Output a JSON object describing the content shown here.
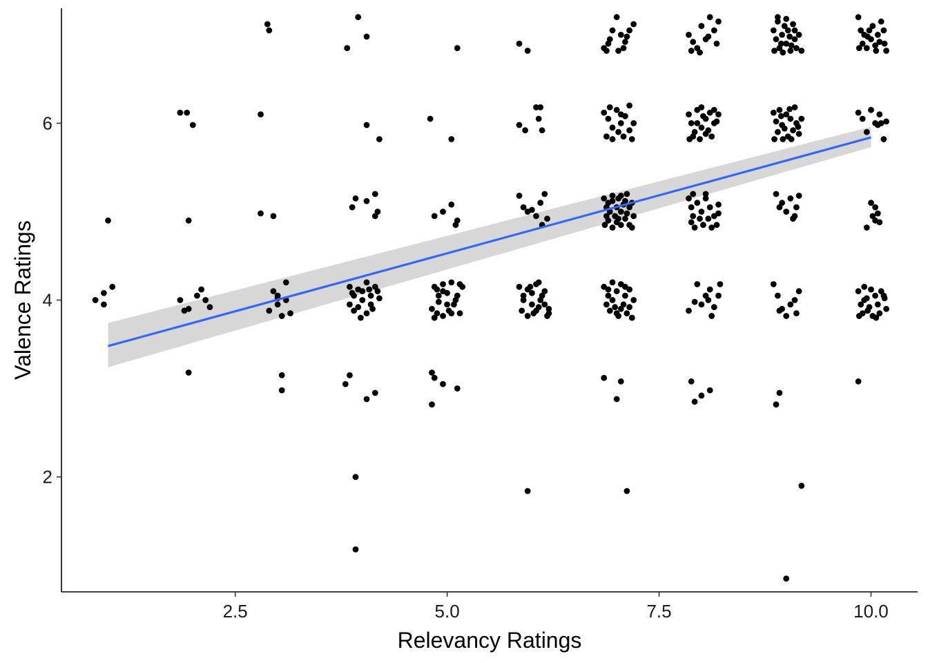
{
  "chart_data": {
    "type": "scatter",
    "title": "",
    "xlabel": "Relevancy Ratings",
    "ylabel": "Valence Ratings",
    "xlim": [
      0.45,
      10.55
    ],
    "ylim": [
      0.7,
      7.3
    ],
    "x_ticks": [
      2.5,
      5.0,
      7.5,
      10.0
    ],
    "x_tick_labels": [
      "2.5",
      "5.0",
      "7.5",
      "10.0"
    ],
    "y_ticks": [
      2,
      4,
      6
    ],
    "y_tick_labels": [
      "2",
      "4",
      "6"
    ],
    "grid": false,
    "legend": "none",
    "point_color": "#000000",
    "note": "Jittered points",
    "points": [
      [
        1.0,
        4.9
      ],
      [
        0.85,
        4.0
      ],
      [
        0.95,
        3.95
      ],
      [
        1.05,
        4.15
      ],
      [
        0.95,
        4.08
      ],
      [
        1.95,
        4.9
      ],
      [
        1.85,
        6.12
      ],
      [
        1.93,
        6.12
      ],
      [
        2.0,
        5.98
      ],
      [
        1.85,
        4.0
      ],
      [
        1.95,
        3.9
      ],
      [
        2.05,
        4.05
      ],
      [
        2.1,
        4.12
      ],
      [
        2.15,
        4.0
      ],
      [
        2.2,
        3.92
      ],
      [
        1.9,
        3.88
      ],
      [
        1.95,
        3.18
      ],
      [
        2.88,
        7.12
      ],
      [
        2.9,
        7.05
      ],
      [
        2.8,
        6.1
      ],
      [
        2.8,
        4.98
      ],
      [
        2.95,
        4.95
      ],
      [
        2.95,
        4.1
      ],
      [
        3.0,
        4.02
      ],
      [
        3.1,
        4.2
      ],
      [
        2.9,
        3.88
      ],
      [
        3.0,
        3.95
      ],
      [
        3.05,
        3.82
      ],
      [
        3.1,
        4.0
      ],
      [
        3.15,
        3.85
      ],
      [
        3.0,
        4.05
      ],
      [
        3.05,
        3.15
      ],
      [
        3.05,
        2.98
      ],
      [
        3.95,
        7.2
      ],
      [
        4.05,
        6.98
      ],
      [
        3.82,
        6.85
      ],
      [
        4.05,
        5.98
      ],
      [
        4.2,
        5.82
      ],
      [
        3.92,
        5.15
      ],
      [
        3.88,
        5.05
      ],
      [
        4.05,
        5.12
      ],
      [
        4.15,
        5.2
      ],
      [
        4.15,
        4.95
      ],
      [
        4.18,
        5.0
      ],
      [
        3.85,
        4.15
      ],
      [
        3.9,
        4.05
      ],
      [
        3.95,
        4.12
      ],
      [
        4.0,
        4.0
      ],
      [
        4.05,
        4.2
      ],
      [
        4.1,
        4.05
      ],
      [
        4.15,
        4.15
      ],
      [
        3.85,
        3.95
      ],
      [
        3.9,
        3.88
      ],
      [
        3.95,
        3.92
      ],
      [
        4.0,
        4.1
      ],
      [
        4.05,
        3.85
      ],
      [
        4.12,
        3.9
      ],
      [
        4.18,
        4.1
      ],
      [
        3.88,
        4.08
      ],
      [
        3.98,
        3.8
      ],
      [
        4.08,
        4.12
      ],
      [
        4.2,
        4.02
      ],
      [
        4.1,
        3.95
      ],
      [
        3.85,
        3.15
      ],
      [
        3.8,
        3.05
      ],
      [
        4.05,
        2.88
      ],
      [
        4.15,
        2.95
      ],
      [
        3.92,
        2.0
      ],
      [
        3.92,
        1.18
      ],
      [
        5.12,
        6.85
      ],
      [
        4.8,
        6.05
      ],
      [
        5.05,
        5.82
      ],
      [
        4.85,
        4.95
      ],
      [
        4.95,
        5.0
      ],
      [
        5.05,
        5.08
      ],
      [
        5.12,
        4.9
      ],
      [
        5.1,
        4.85
      ],
      [
        4.85,
        4.15
      ],
      [
        4.9,
        4.05
      ],
      [
        4.95,
        4.1
      ],
      [
        5.0,
        3.95
      ],
      [
        5.05,
        4.2
      ],
      [
        5.1,
        4.0
      ],
      [
        5.15,
        4.18
      ],
      [
        4.82,
        3.9
      ],
      [
        4.88,
        3.85
      ],
      [
        4.95,
        3.82
      ],
      [
        5.02,
        3.88
      ],
      [
        5.08,
        3.95
      ],
      [
        5.15,
        3.85
      ],
      [
        4.9,
        3.98
      ],
      [
        5.0,
        4.08
      ],
      [
        4.85,
        3.8
      ],
      [
        4.95,
        4.18
      ],
      [
        5.05,
        3.85
      ],
      [
        5.12,
        4.05
      ],
      [
        5.18,
        4.15
      ],
      [
        4.88,
        4.12
      ],
      [
        4.82,
        3.18
      ],
      [
        4.85,
        3.12
      ],
      [
        4.95,
        3.05
      ],
      [
        5.12,
        3.0
      ],
      [
        4.82,
        2.82
      ],
      [
        5.85,
        6.9
      ],
      [
        5.95,
        6.82
      ],
      [
        5.85,
        5.98
      ],
      [
        5.92,
        5.92
      ],
      [
        6.05,
        6.18
      ],
      [
        6.1,
        6.18
      ],
      [
        6.08,
        6.05
      ],
      [
        6.12,
        5.92
      ],
      [
        5.85,
        5.18
      ],
      [
        5.9,
        5.05
      ],
      [
        5.95,
        5.0
      ],
      [
        6.05,
        4.95
      ],
      [
        6.1,
        5.1
      ],
      [
        6.15,
        5.2
      ],
      [
        6.12,
        4.85
      ],
      [
        6.18,
        4.92
      ],
      [
        6.0,
        5.02
      ],
      [
        5.85,
        4.15
      ],
      [
        5.9,
        4.05
      ],
      [
        5.95,
        4.12
      ],
      [
        6.0,
        3.95
      ],
      [
        6.05,
        4.18
      ],
      [
        6.1,
        4.0
      ],
      [
        6.15,
        4.1
      ],
      [
        6.2,
        3.9
      ],
      [
        5.88,
        3.88
      ],
      [
        5.95,
        3.82
      ],
      [
        6.02,
        3.85
      ],
      [
        6.08,
        3.92
      ],
      [
        6.12,
        4.05
      ],
      [
        6.18,
        3.82
      ],
      [
        5.9,
        4.0
      ],
      [
        6.0,
        4.08
      ],
      [
        6.05,
        3.88
      ],
      [
        6.15,
        3.95
      ],
      [
        5.98,
        4.15
      ],
      [
        6.08,
        4.2
      ],
      [
        6.2,
        3.85
      ],
      [
        5.95,
        1.84
      ],
      [
        6.85,
        6.85
      ],
      [
        6.9,
        6.9
      ],
      [
        6.95,
        7.05
      ],
      [
        7.0,
        7.2
      ],
      [
        7.05,
        7.0
      ],
      [
        7.1,
        6.92
      ],
      [
        7.15,
        7.05
      ],
      [
        7.2,
        7.12
      ],
      [
        6.88,
        6.82
      ],
      [
        7.02,
        6.82
      ],
      [
        7.08,
        6.85
      ],
      [
        6.92,
        6.95
      ],
      [
        7.12,
        6.98
      ],
      [
        6.85,
        6.12
      ],
      [
        6.9,
        6.05
      ],
      [
        6.95,
        5.95
      ],
      [
        7.0,
        6.15
      ],
      [
        7.05,
        6.0
      ],
      [
        7.1,
        6.08
      ],
      [
        7.15,
        6.2
      ],
      [
        7.2,
        6.0
      ],
      [
        6.88,
        5.85
      ],
      [
        6.95,
        5.82
      ],
      [
        7.02,
        5.9
      ],
      [
        7.08,
        5.85
      ],
      [
        7.15,
        5.92
      ],
      [
        7.18,
        5.82
      ],
      [
        6.92,
        6.18
      ],
      [
        7.05,
        6.1
      ],
      [
        6.85,
        5.15
      ],
      [
        6.88,
        5.05
      ],
      [
        6.9,
        5.1
      ],
      [
        6.92,
        5.0
      ],
      [
        6.95,
        5.12
      ],
      [
        6.98,
        4.95
      ],
      [
        7.0,
        5.05
      ],
      [
        7.02,
        5.15
      ],
      [
        7.05,
        5.0
      ],
      [
        7.08,
        5.08
      ],
      [
        7.1,
        5.12
      ],
      [
        7.12,
        4.98
      ],
      [
        7.15,
        5.05
      ],
      [
        7.18,
        5.1
      ],
      [
        6.86,
        4.85
      ],
      [
        6.9,
        4.9
      ],
      [
        6.95,
        4.82
      ],
      [
        7.0,
        4.88
      ],
      [
        7.05,
        4.85
      ],
      [
        7.1,
        4.92
      ],
      [
        7.15,
        4.85
      ],
      [
        7.2,
        4.95
      ],
      [
        6.95,
        5.18
      ],
      [
        7.05,
        5.18
      ],
      [
        7.12,
        5.2
      ],
      [
        6.88,
        4.95
      ],
      [
        7.02,
        4.92
      ],
      [
        7.18,
        4.82
      ],
      [
        6.85,
        4.15
      ],
      [
        6.9,
        4.05
      ],
      [
        6.95,
        4.2
      ],
      [
        7.0,
        4.1
      ],
      [
        7.05,
        4.18
      ],
      [
        7.1,
        4.05
      ],
      [
        7.15,
        4.12
      ],
      [
        7.2,
        4.0
      ],
      [
        6.88,
        3.95
      ],
      [
        6.92,
        3.88
      ],
      [
        6.98,
        3.92
      ],
      [
        7.02,
        3.82
      ],
      [
        7.08,
        3.95
      ],
      [
        7.12,
        3.85
      ],
      [
        7.18,
        3.8
      ],
      [
        6.95,
        4.0
      ],
      [
        7.05,
        3.9
      ],
      [
        7.1,
        4.15
      ],
      [
        6.9,
        4.12
      ],
      [
        7.0,
        3.85
      ],
      [
        7.15,
        3.92
      ],
      [
        6.85,
        3.12
      ],
      [
        7.05,
        3.08
      ],
      [
        7.0,
        2.88
      ],
      [
        7.12,
        1.84
      ],
      [
        7.85,
        7.0
      ],
      [
        7.9,
        6.92
      ],
      [
        7.95,
        6.85
      ],
      [
        8.0,
        7.1
      ],
      [
        8.05,
        6.95
      ],
      [
        8.1,
        7.2
      ],
      [
        8.15,
        7.05
      ],
      [
        8.2,
        7.15
      ],
      [
        7.88,
        6.82
      ],
      [
        7.98,
        6.8
      ],
      [
        8.08,
        6.98
      ],
      [
        8.18,
        6.9
      ],
      [
        7.85,
        6.1
      ],
      [
        7.88,
        6.0
      ],
      [
        7.9,
        5.85
      ],
      [
        7.95,
        6.15
      ],
      [
        8.0,
        5.95
      ],
      [
        8.05,
        6.05
      ],
      [
        8.1,
        6.12
      ],
      [
        8.15,
        6.0
      ],
      [
        8.2,
        6.1
      ],
      [
        7.92,
        5.9
      ],
      [
        7.98,
        5.82
      ],
      [
        8.02,
        6.08
      ],
      [
        8.08,
        5.92
      ],
      [
        8.12,
        5.85
      ],
      [
        8.18,
        6.02
      ],
      [
        7.86,
        5.82
      ],
      [
        8.0,
        6.18
      ],
      [
        8.15,
        6.15
      ],
      [
        7.95,
        6.0
      ],
      [
        8.05,
        5.88
      ],
      [
        7.85,
        5.15
      ],
      [
        7.88,
        5.05
      ],
      [
        7.9,
        4.95
      ],
      [
        7.95,
        5.1
      ],
      [
        8.0,
        5.0
      ],
      [
        8.05,
        5.15
      ],
      [
        8.1,
        5.05
      ],
      [
        8.15,
        4.95
      ],
      [
        8.2,
        5.08
      ],
      [
        7.88,
        4.88
      ],
      [
        7.92,
        4.82
      ],
      [
        7.98,
        4.92
      ],
      [
        8.02,
        4.85
      ],
      [
        8.08,
        4.92
      ],
      [
        8.12,
        4.82
      ],
      [
        8.18,
        4.85
      ],
      [
        7.9,
        5.2
      ],
      [
        8.05,
        5.2
      ],
      [
        8.2,
        4.98
      ],
      [
        7.85,
        3.88
      ],
      [
        7.95,
        4.18
      ],
      [
        8.0,
        3.95
      ],
      [
        8.05,
        4.05
      ],
      [
        8.1,
        4.12
      ],
      [
        8.15,
        3.92
      ],
      [
        8.2,
        4.05
      ],
      [
        8.12,
        3.82
      ],
      [
        8.22,
        4.18
      ],
      [
        7.92,
        3.98
      ],
      [
        8.08,
        4.0
      ],
      [
        7.88,
        3.08
      ],
      [
        7.92,
        2.85
      ],
      [
        8.0,
        2.92
      ],
      [
        8.1,
        2.98
      ],
      [
        8.85,
        7.05
      ],
      [
        8.88,
        6.95
      ],
      [
        8.9,
        7.15
      ],
      [
        8.92,
        6.85
      ],
      [
        8.95,
        7.0
      ],
      [
        8.98,
        7.1
      ],
      [
        9.0,
        6.9
      ],
      [
        9.02,
        7.05
      ],
      [
        9.05,
        6.82
      ],
      [
        9.08,
        7.12
      ],
      [
        9.1,
        6.95
      ],
      [
        9.12,
        6.85
      ],
      [
        9.15,
        7.0
      ],
      [
        9.18,
        6.82
      ],
      [
        8.86,
        6.82
      ],
      [
        8.96,
        6.8
      ],
      [
        9.06,
        6.88
      ],
      [
        8.9,
        7.2
      ],
      [
        9.0,
        7.18
      ],
      [
        9.1,
        7.05
      ],
      [
        8.94,
        6.9
      ],
      [
        9.04,
        6.98
      ],
      [
        8.85,
        6.12
      ],
      [
        8.88,
        6.02
      ],
      [
        8.9,
        5.9
      ],
      [
        8.92,
        6.15
      ],
      [
        8.95,
        5.98
      ],
      [
        9.0,
        6.1
      ],
      [
        9.02,
        5.85
      ],
      [
        9.05,
        6.05
      ],
      [
        9.08,
        5.92
      ],
      [
        9.1,
        6.18
      ],
      [
        9.12,
        6.0
      ],
      [
        9.15,
        5.88
      ],
      [
        9.18,
        6.05
      ],
      [
        8.86,
        5.82
      ],
      [
        8.96,
        5.82
      ],
      [
        9.06,
        5.82
      ],
      [
        8.94,
        6.08
      ],
      [
        9.04,
        6.16
      ],
      [
        9.14,
        5.96
      ],
      [
        8.98,
        5.94
      ],
      [
        8.88,
        5.2
      ],
      [
        8.92,
        5.05
      ],
      [
        8.95,
        5.1
      ],
      [
        9.0,
        5.0
      ],
      [
        9.05,
        5.15
      ],
      [
        9.1,
        4.95
      ],
      [
        9.12,
        5.05
      ],
      [
        9.15,
        5.18
      ],
      [
        9.08,
        4.92
      ],
      [
        8.85,
        4.18
      ],
      [
        8.9,
        4.05
      ],
      [
        8.95,
        3.9
      ],
      [
        9.0,
        3.82
      ],
      [
        9.05,
        3.95
      ],
      [
        9.1,
        4.0
      ],
      [
        9.12,
        3.85
      ],
      [
        9.15,
        4.1
      ],
      [
        8.92,
        3.88
      ],
      [
        8.92,
        2.95
      ],
      [
        8.88,
        2.82
      ],
      [
        9.18,
        1.9
      ],
      [
        9.0,
        0.85
      ],
      [
        9.85,
        7.2
      ],
      [
        9.88,
        7.05
      ],
      [
        9.9,
        6.9
      ],
      [
        9.92,
        7.0
      ],
      [
        9.95,
        6.85
      ],
      [
        9.98,
        7.05
      ],
      [
        10.0,
        6.95
      ],
      [
        10.02,
        7.1
      ],
      [
        10.05,
        6.88
      ],
      [
        10.08,
        7.0
      ],
      [
        10.1,
        6.92
      ],
      [
        10.12,
        7.15
      ],
      [
        10.15,
        7.05
      ],
      [
        10.18,
        6.82
      ],
      [
        9.86,
        6.85
      ],
      [
        9.96,
        6.98
      ],
      [
        10.06,
        6.82
      ],
      [
        10.16,
        6.9
      ],
      [
        9.85,
        6.12
      ],
      [
        9.9,
        6.05
      ],
      [
        9.95,
        5.9
      ],
      [
        10.0,
        6.15
      ],
      [
        10.05,
        6.0
      ],
      [
        10.08,
        5.98
      ],
      [
        10.1,
        6.1
      ],
      [
        10.12,
        6.0
      ],
      [
        10.15,
        5.82
      ],
      [
        10.18,
        6.02
      ],
      [
        10.0,
        5.1
      ],
      [
        10.02,
        4.95
      ],
      [
        10.05,
        5.05
      ],
      [
        10.08,
        4.98
      ],
      [
        10.1,
        4.88
      ],
      [
        9.95,
        4.82
      ],
      [
        10.05,
        4.9
      ],
      [
        9.85,
        4.1
      ],
      [
        9.88,
        3.95
      ],
      [
        9.9,
        3.85
      ],
      [
        9.92,
        4.15
      ],
      [
        9.95,
        4.02
      ],
      [
        9.98,
        3.92
      ],
      [
        10.0,
        4.12
      ],
      [
        10.02,
        3.82
      ],
      [
        10.05,
        4.05
      ],
      [
        10.08,
        3.95
      ],
      [
        10.1,
        3.85
      ],
      [
        10.12,
        4.1
      ],
      [
        10.15,
        4.05
      ],
      [
        10.18,
        3.9
      ],
      [
        9.86,
        3.82
      ],
      [
        9.96,
        3.88
      ],
      [
        10.06,
        3.8
      ],
      [
        10.16,
        4.02
      ],
      [
        9.92,
        4.0
      ],
      [
        9.85,
        3.08
      ]
    ],
    "series": [
      {
        "type": "smooth-lm",
        "color": "#3366FF",
        "band_color": "#d0d0d0",
        "x": [
          1.0,
          10.0
        ],
        "y": [
          3.48,
          5.84
        ],
        "se_lower": [
          3.24,
          5.73
        ],
        "se_upper": [
          3.74,
          5.96
        ]
      }
    ]
  }
}
